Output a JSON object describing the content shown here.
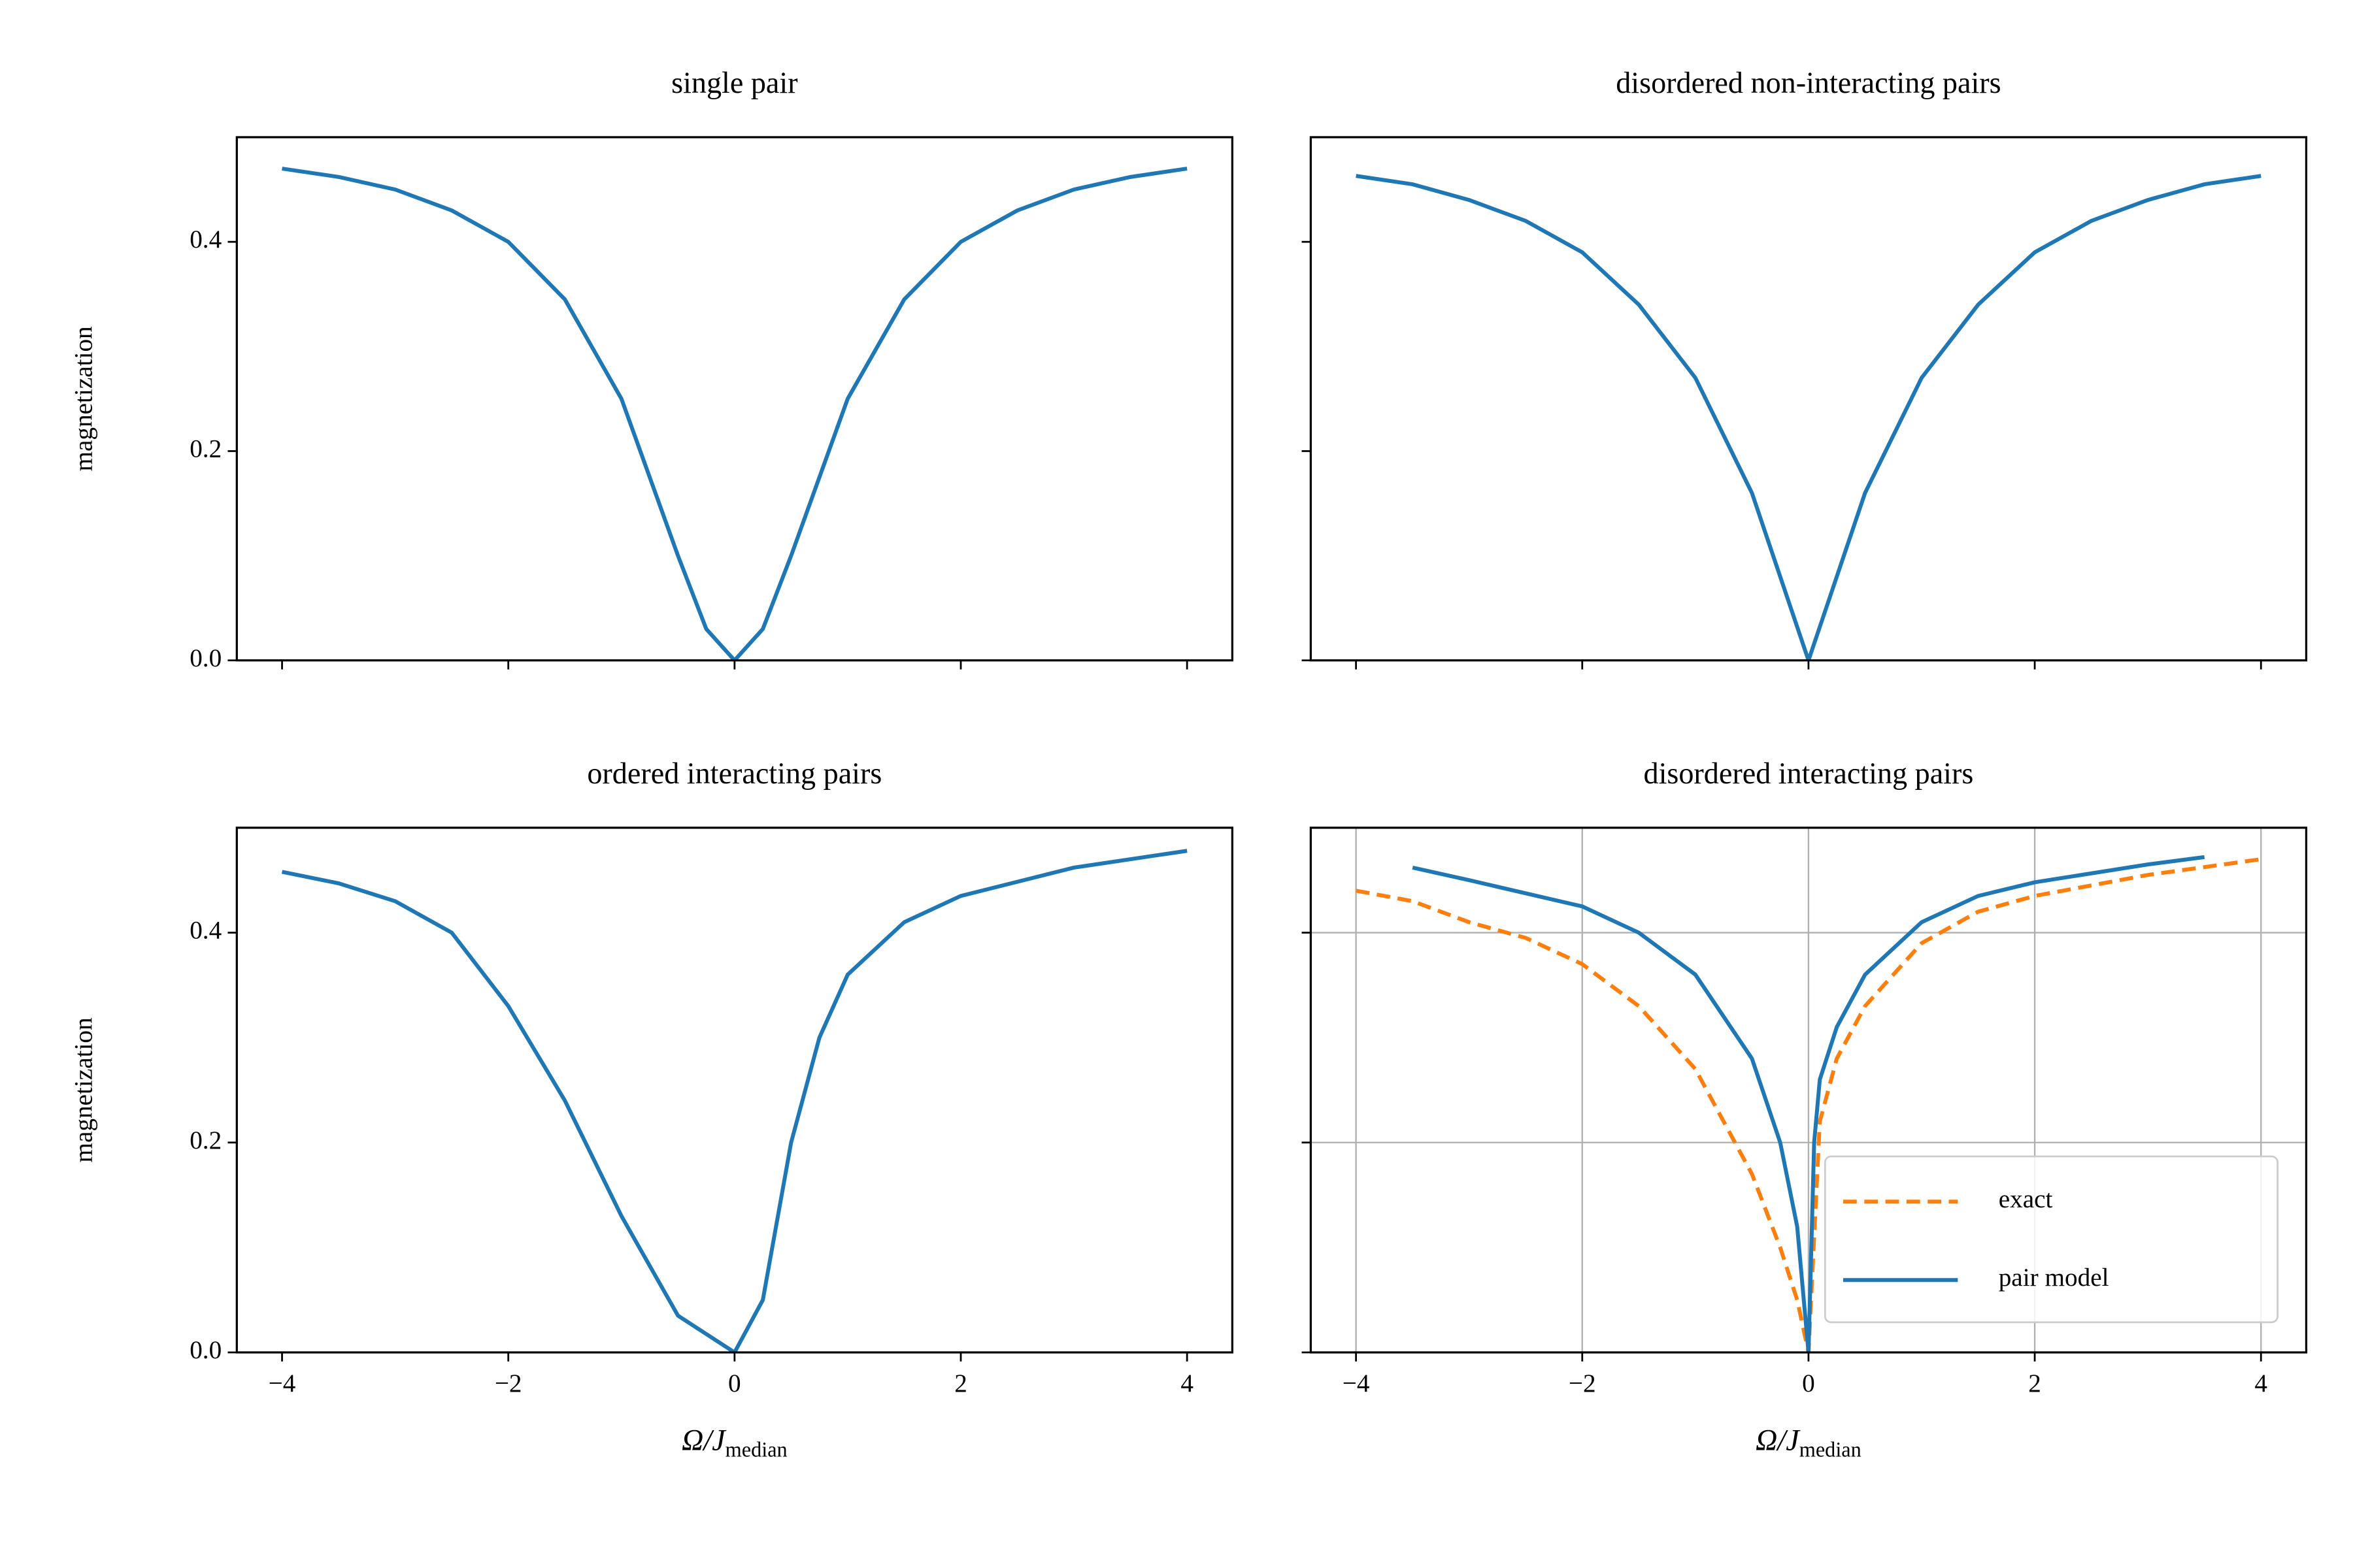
{
  "chart_data": [
    {
      "type": "line",
      "title": "single pair",
      "ylabel": "magnetization",
      "xlim": [
        -4.4,
        4.4
      ],
      "ylim": [
        0,
        0.5
      ],
      "xticks": [
        {
          "value": -4,
          "label": "−4"
        },
        {
          "value": -2,
          "label": "−2"
        },
        0,
        2,
        4
      ],
      "yticks": [
        {
          "value": 0,
          "label": "0.0"
        },
        0.2,
        0.4
      ],
      "show_xticklabels": false,
      "show_yticklabels": true,
      "grid": false,
      "series": [
        {
          "color": "#1f77b4",
          "dash": false,
          "x": [
            -4,
            -3.5,
            -3,
            -2.5,
            -2,
            -1.5,
            -1,
            -0.5,
            -0.25,
            0,
            0.25,
            0.5,
            1,
            1.5,
            2,
            2.5,
            3,
            3.5,
            4
          ],
          "values": [
            0.47,
            0.462,
            0.45,
            0.43,
            0.4,
            0.345,
            0.25,
            0.1,
            0.03,
            0,
            0.03,
            0.1,
            0.25,
            0.345,
            0.4,
            0.43,
            0.45,
            0.462,
            0.47
          ]
        }
      ]
    },
    {
      "type": "line",
      "title": "disordered non-interacting pairs",
      "xlim": [
        -4.4,
        4.4
      ],
      "ylim": [
        0,
        0.5
      ],
      "xticks": [
        -4,
        -2,
        0,
        2,
        4
      ],
      "yticks": [
        0,
        0.2,
        0.4
      ],
      "show_xticklabels": false,
      "show_yticklabels": false,
      "grid": false,
      "series": [
        {
          "color": "#1f77b4",
          "dash": false,
          "x": [
            -4,
            -3.5,
            -3,
            -2.5,
            -2,
            -1.5,
            -1,
            -0.5,
            -0.25,
            0,
            0.25,
            0.5,
            1,
            1.5,
            2,
            2.5,
            3,
            3.5,
            4
          ],
          "values": [
            0.463,
            0.455,
            0.44,
            0.42,
            0.39,
            0.34,
            0.27,
            0.16,
            0.08,
            0,
            0.08,
            0.16,
            0.27,
            0.34,
            0.39,
            0.42,
            0.44,
            0.455,
            0.463
          ]
        }
      ]
    },
    {
      "type": "line",
      "title": "ordered interacting pairs",
      "ylabel": "magnetization",
      "xlabel": "Ω/J",
      "xlabel_sub": "median",
      "xlim": [
        -4.4,
        4.4
      ],
      "ylim": [
        0,
        0.5
      ],
      "xticks": [
        {
          "value": -4,
          "label": "−4"
        },
        {
          "value": -2,
          "label": "−2"
        },
        0,
        2,
        4
      ],
      "yticks": [
        {
          "value": 0,
          "label": "0.0"
        },
        0.2,
        0.4
      ],
      "show_xticklabels": true,
      "show_yticklabels": true,
      "grid": false,
      "series": [
        {
          "color": "#1f77b4",
          "dash": false,
          "x": [
            -4,
            -3.5,
            -3,
            -2.5,
            -2,
            -1.5,
            -1,
            -0.5,
            0,
            0.25,
            0.5,
            0.75,
            1,
            1.5,
            2,
            3,
            4
          ],
          "values": [
            0.458,
            0.447,
            0.43,
            0.4,
            0.33,
            0.24,
            0.13,
            0.035,
            0,
            0.05,
            0.2,
            0.3,
            0.36,
            0.41,
            0.435,
            0.462,
            0.478
          ]
        }
      ]
    },
    {
      "type": "line",
      "title": "disordered interacting pairs",
      "xlabel": "Ω/J",
      "xlabel_sub": "median",
      "xlim": [
        -4.4,
        4.4
      ],
      "ylim": [
        0,
        0.5
      ],
      "xticks": [
        {
          "value": -4,
          "label": "−4"
        },
        {
          "value": -2,
          "label": "−2"
        },
        0,
        2,
        4
      ],
      "yticks": [
        0,
        0.2,
        0.4
      ],
      "show_xticklabels": true,
      "show_yticklabels": false,
      "grid": true,
      "legend": "lower right",
      "series": [
        {
          "name": "exact",
          "color": "#ff7f0e",
          "dash": true,
          "x": [
            -4,
            -3.5,
            -3,
            -2.5,
            -2,
            -1.5,
            -1,
            -0.5,
            -0.25,
            -0.1,
            0,
            0.1,
            0.25,
            0.5,
            1,
            1.5,
            2,
            3,
            4
          ],
          "values": [
            0.44,
            0.43,
            0.41,
            0.395,
            0.37,
            0.33,
            0.27,
            0.17,
            0.1,
            0.05,
            0.0,
            0.22,
            0.28,
            0.33,
            0.39,
            0.42,
            0.435,
            0.455,
            0.47
          ]
        },
        {
          "name": "pair model",
          "color": "#1f77b4",
          "dash": false,
          "x": [
            -3.5,
            -3,
            -2,
            -1.5,
            -1,
            -0.5,
            -0.25,
            -0.1,
            0,
            0.05,
            0.1,
            0.25,
            0.5,
            1,
            1.5,
            2,
            3,
            3.5
          ],
          "values": [
            0.462,
            0.45,
            0.425,
            0.4,
            0.36,
            0.28,
            0.2,
            0.12,
            0,
            0.2,
            0.26,
            0.31,
            0.36,
            0.41,
            0.435,
            0.448,
            0.465,
            0.472
          ]
        }
      ]
    }
  ]
}
